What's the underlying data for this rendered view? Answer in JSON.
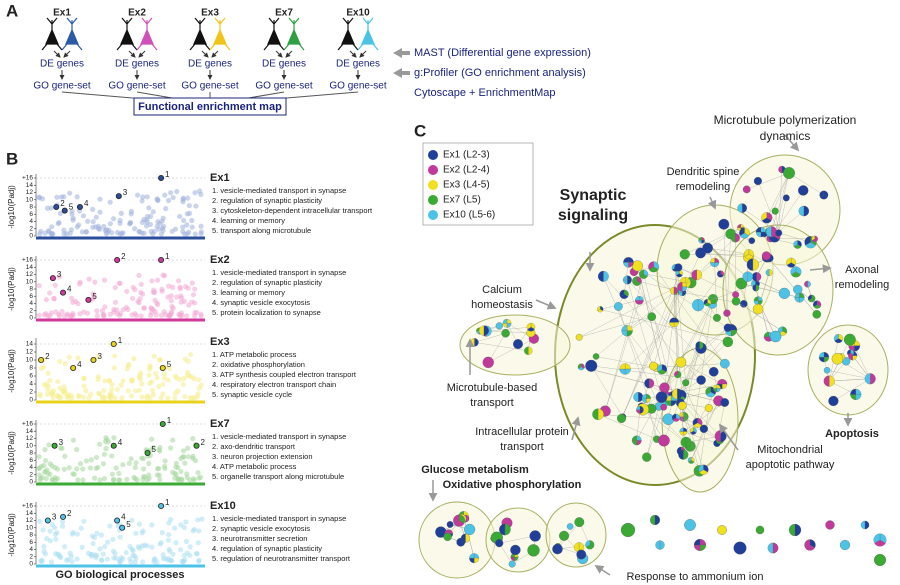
{
  "panel_a": {
    "label": "A",
    "cells": [
      "Ex1",
      "Ex2",
      "Ex3",
      "Ex7",
      "Ex10"
    ],
    "de_label": "DE genes",
    "go_label": "GO gene-set",
    "map_label": "Functional enrichment map",
    "tools": [
      "MAST (Differential gene expression)",
      "g:Profiler (GO enrichment analysis)",
      "Cytoscape + EnrichmentMap"
    ]
  },
  "panel_b": {
    "label": "B",
    "xlabel": "GO biological processes",
    "xlim": [
      0,
      100
    ],
    "plots": [
      {
        "name": "Ex1",
        "color": "#2a4d9c",
        "light": "#9fb0dc",
        "ylabel": "-log10(Padj)",
        "ylim": [
          0,
          16
        ],
        "yticks": [
          0,
          2,
          4,
          6,
          8,
          10,
          12,
          14,
          {
            "value": 16,
            "label": "+16"
          }
        ],
        "points": [
          {
            "label": "1",
            "x": 74,
            "y": 16
          },
          {
            "label": "2",
            "x": 12,
            "y": 8
          },
          {
            "label": "3",
            "x": 49,
            "y": 11
          },
          {
            "label": "4",
            "x": 26,
            "y": 8
          },
          {
            "label": "5",
            "x": 17,
            "y": 7
          }
        ],
        "terms": [
          "1. vesicle-mediated transport in synapse",
          "2. regulation of synaptic plasticity",
          "3. cytoskeleton-dependent intracellular transport",
          "4. learning or memory",
          "5. transport along microtubule"
        ]
      },
      {
        "name": "Ex2",
        "color": "#d0399b",
        "light": "#f2a8d4",
        "ylabel": "-log10(Padj)",
        "ylim": [
          0,
          16
        ],
        "yticks": [
          0,
          2,
          4,
          6,
          8,
          10,
          12,
          14,
          {
            "value": 16,
            "label": "+16"
          }
        ],
        "points": [
          {
            "label": "1",
            "x": 74,
            "y": 16
          },
          {
            "label": "2",
            "x": 48,
            "y": 16
          },
          {
            "label": "3",
            "x": 10,
            "y": 11
          },
          {
            "label": "4",
            "x": 16,
            "y": 7
          },
          {
            "label": "5",
            "x": 31,
            "y": 5
          }
        ],
        "terms": [
          "1. vesicle-mediated transport in synapse",
          "2. regulation of synaptic plasticity",
          "3. learning or memory",
          "4. synaptic vesicle exocytosis",
          "5. protein localization to synapse"
        ]
      },
      {
        "name": "Ex3",
        "color": "#e8d21a",
        "light": "#f5ec8a",
        "ylabel": "-log10(Padj)",
        "ylim": [
          0,
          14.5
        ],
        "yticks": [
          0,
          2,
          4,
          6,
          8,
          10,
          12,
          14
        ],
        "points": [
          {
            "label": "1",
            "x": 46,
            "y": 14
          },
          {
            "label": "2",
            "x": 3,
            "y": 10
          },
          {
            "label": "3",
            "x": 34,
            "y": 10
          },
          {
            "label": "4",
            "x": 22,
            "y": 8
          },
          {
            "label": "5",
            "x": 75,
            "y": 8
          }
        ],
        "terms": [
          "1. ATP metabolic process",
          "2. oxidative phosphorylation",
          "3. ATP synthesis coupled electron transport",
          "4. respiratory electron transport chain",
          "5. synaptic vesicle cycle"
        ]
      },
      {
        "name": "Ex7",
        "color": "#3aaa35",
        "light": "#a6d79e",
        "ylabel": "-log10(Padj)",
        "ylim": [
          0,
          16
        ],
        "yticks": [
          0,
          2,
          4,
          6,
          8,
          10,
          12,
          14,
          {
            "value": 16,
            "label": "+16"
          }
        ],
        "points": [
          {
            "label": "1",
            "x": 75,
            "y": 16
          },
          {
            "label": "2",
            "x": 95,
            "y": 10
          },
          {
            "label": "3",
            "x": 11,
            "y": 10
          },
          {
            "label": "4",
            "x": 46,
            "y": 10
          },
          {
            "label": "5",
            "x": 66,
            "y": 8
          }
        ],
        "terms": [
          "1. vesicle-mediated transport in synapse",
          "2. axo-dendritic transport",
          "3. neuron projection extension",
          "4. ATP metabolic process",
          "5. organelle transport along microtubule"
        ]
      },
      {
        "name": "Ex10",
        "color": "#4cc3e6",
        "light": "#a9def2",
        "ylabel": "-log10(Padj)",
        "ylim": [
          0,
          16
        ],
        "yticks": [
          0,
          2,
          4,
          6,
          8,
          10,
          12,
          14,
          {
            "value": 16,
            "label": "+16"
          }
        ],
        "points": [
          {
            "label": "1",
            "x": 74,
            "y": 16
          },
          {
            "label": "2",
            "x": 16,
            "y": 13
          },
          {
            "label": "3",
            "x": 7,
            "y": 12
          },
          {
            "label": "4",
            "x": 48,
            "y": 12
          },
          {
            "label": "5",
            "x": 51,
            "y": 10
          }
        ],
        "terms": [
          "1. vesicle-mediated transport in synapse",
          "2. synaptic vesicle exocytosis",
          "3. neurotransmitter secretion",
          "4. regulation of synaptic plasticity",
          "5. regulation of neurotransmitter transport"
        ]
      }
    ]
  },
  "panel_c": {
    "label": "C",
    "legend": [
      {
        "name": "Ex1 (L2-3)",
        "color": "#1f3f99"
      },
      {
        "name": "Ex2 (L2-4)",
        "color": "#c1399a"
      },
      {
        "name": "Ex3 (L4-5)",
        "color": "#f0e01f"
      },
      {
        "name": "Ex7 (L5)",
        "color": "#3aaa35"
      },
      {
        "name": "Ex10 (L5-6)",
        "color": "#4cc3e6"
      }
    ],
    "clusters": [
      {
        "label": [
          "Synaptic",
          "signaling"
        ],
        "bold": true
      },
      {
        "label": [
          "Microtubule polymerization",
          "dynamics"
        ]
      },
      {
        "label": [
          "Dendritic spine",
          "remodeling"
        ]
      },
      {
        "label": [
          "Axonal",
          "remodeling"
        ]
      },
      {
        "label": [
          "Calcium",
          "homeostasis"
        ]
      },
      {
        "label": [
          "Microtubule-based",
          "transport"
        ]
      },
      {
        "label": [
          "Intracellular protein",
          "transport"
        ]
      },
      {
        "label": [
          "Mitochondrial",
          "apoptotic pathway"
        ]
      },
      {
        "label": [
          "Apoptosis"
        ],
        "bold": true
      },
      {
        "label": [
          "Glucose metabolism"
        ],
        "bold": true
      },
      {
        "label": [
          "Oxidative phosphorylation"
        ],
        "bold": true
      },
      {
        "label": [
          "Response to ammonium ion"
        ]
      }
    ]
  }
}
